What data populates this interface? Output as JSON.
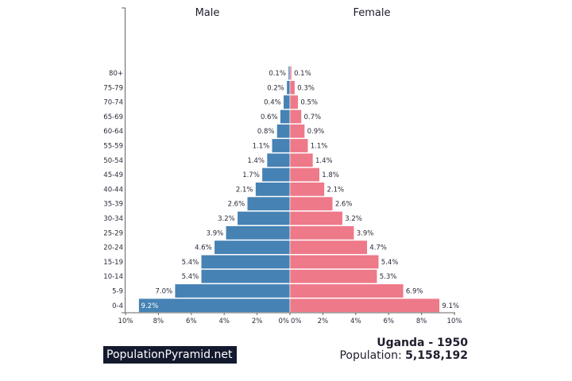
{
  "chart_data": {
    "type": "bar",
    "orientation": "horizontal-pyramid",
    "categories": [
      "80+",
      "75-79",
      "70-74",
      "65-69",
      "60-64",
      "55-59",
      "50-54",
      "45-49",
      "40-44",
      "35-39",
      "30-34",
      "25-29",
      "20-24",
      "15-19",
      "10-14",
      "5-9",
      "0-4"
    ],
    "series": [
      {
        "name": "Male",
        "color": "#4682b4",
        "values": [
          0.1,
          0.2,
          0.4,
          0.6,
          0.8,
          1.1,
          1.4,
          1.7,
          2.1,
          2.6,
          3.2,
          3.9,
          4.6,
          5.4,
          5.4,
          7.0,
          9.2
        ]
      },
      {
        "name": "Female",
        "color": "#ee7989",
        "values": [
          0.1,
          0.3,
          0.5,
          0.7,
          0.9,
          1.1,
          1.4,
          1.8,
          2.1,
          2.6,
          3.2,
          3.9,
          4.7,
          5.4,
          5.3,
          6.9,
          9.1
        ]
      }
    ],
    "xlim": [
      -10,
      10
    ],
    "xticks": [
      "10%",
      "8%",
      "6%",
      "4%",
      "2%",
      "0%",
      "0%",
      "2%",
      "4%",
      "6%",
      "8%",
      "10%"
    ],
    "unit": "%"
  },
  "footer": {
    "brand": "PopulationPyramid.net",
    "country_year": "Uganda - 1950",
    "population_label": "Population: ",
    "population_value": "5,158,192"
  }
}
